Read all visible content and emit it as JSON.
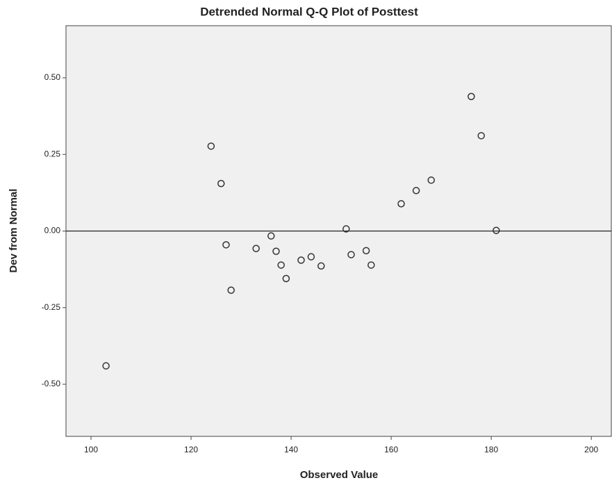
{
  "chart_data": {
    "type": "scatter",
    "title": "Detrended Normal Q-Q Plot of Posttest",
    "x_label": "Observed Value",
    "y_label": "Dev from Normal",
    "x": [
      103,
      124,
      126,
      127,
      128,
      133,
      136,
      137,
      138,
      139,
      142,
      144,
      146,
      151,
      152,
      155,
      156,
      162,
      165,
      168,
      176,
      178,
      181
    ],
    "values": [
      -0.44,
      0.277,
      0.155,
      -0.045,
      -0.193,
      -0.057,
      -0.016,
      -0.066,
      -0.111,
      -0.155,
      -0.095,
      -0.084,
      -0.114,
      0.007,
      -0.077,
      -0.064,
      -0.111,
      0.089,
      0.132,
      0.166,
      0.439,
      0.311,
      0.002
    ],
    "color": "#333333",
    "xlim": [
      95,
      204
    ],
    "ylim": [
      -0.67,
      0.67
    ],
    "xticks": [
      100,
      120,
      140,
      160,
      180,
      200
    ],
    "yticks": [
      {
        "value": 0.5,
        "label": "0.50"
      },
      {
        "value": 0.25,
        "label": "0.25"
      },
      {
        "value": 0,
        "label": "0.00"
      },
      {
        "value": -0.25,
        "label": "-0.25"
      },
      {
        "value": -0.5,
        "label": "-0.50"
      }
    ],
    "reference_line": 0
  }
}
